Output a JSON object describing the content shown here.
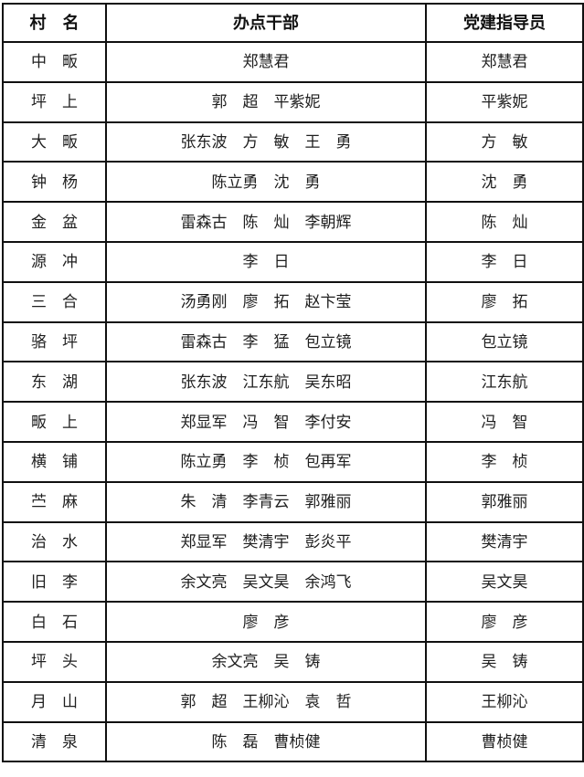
{
  "page": {
    "background_color": "#ffffff",
    "grid_color": "#101010",
    "text_color": "#1e1e1e"
  },
  "table": {
    "headers": [
      "村　名",
      "办点干部",
      "党建指导员"
    ],
    "rows": [
      {
        "village": "中　畈",
        "cadres": "郑慧君",
        "instructor": "郑慧君"
      },
      {
        "village": "坪　上",
        "cadres": "郭　超　平紫妮",
        "instructor": "平紫妮"
      },
      {
        "village": "大　畈",
        "cadres": "张东波　方　敏　王　勇",
        "instructor": "方　敏"
      },
      {
        "village": "钟　杨",
        "cadres": "陈立勇　沈　勇",
        "instructor": "沈　勇"
      },
      {
        "village": "金　盆",
        "cadres": "雷森古　陈　灿　李朝辉",
        "instructor": "陈　灿"
      },
      {
        "village": "源　冲",
        "cadres": "李　日",
        "instructor": "李　日"
      },
      {
        "village": "三　合",
        "cadres": "汤勇刚　廖　拓　赵卞莹",
        "instructor": "廖　拓"
      },
      {
        "village": "骆　坪",
        "cadres": "雷森古　李　猛　包立镜",
        "instructor": "包立镜"
      },
      {
        "village": "东　湖",
        "cadres": "张东波　江东航　吴东昭",
        "instructor": "江东航"
      },
      {
        "village": "畈　上",
        "cadres": "郑显军　冯　智　李付安",
        "instructor": "冯　智"
      },
      {
        "village": "横　铺",
        "cadres": "陈立勇　李　桢　包再军",
        "instructor": "李　桢"
      },
      {
        "village": "苎　麻",
        "cadres": "朱　清　李青云　郭雅丽",
        "instructor": "郭雅丽"
      },
      {
        "village": "治　水",
        "cadres": "郑显军　樊清宇　彭炎平",
        "instructor": "樊清宇"
      },
      {
        "village": "旧　李",
        "cadres": "余文亮　吴文昊　余鸿飞",
        "instructor": "吴文昊"
      },
      {
        "village": "白　石",
        "cadres": "廖　彦",
        "instructor": "廖　彦"
      },
      {
        "village": "坪　头",
        "cadres": "余文亮　吴　铸",
        "instructor": "吴　铸"
      },
      {
        "village": "月　山",
        "cadres": "郭　超　王柳沁　袁　哲",
        "instructor": "王柳沁"
      },
      {
        "village": "清　泉",
        "cadres": "陈　磊　曹桢健",
        "instructor": "曹桢健"
      }
    ]
  }
}
